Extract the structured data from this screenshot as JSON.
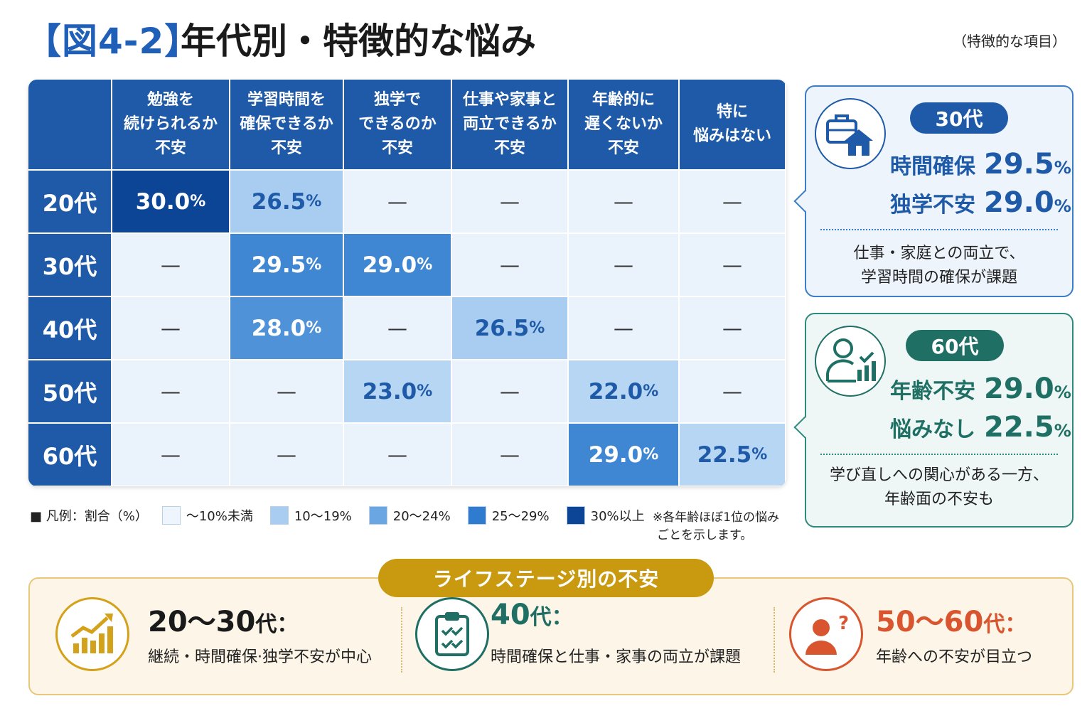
{
  "title": {
    "bracket": "【図4-2】",
    "main": "年代別・特徴的な悩み",
    "note": "（特徴的な項目）"
  },
  "chart_data": {
    "type": "heatmap",
    "columns": [
      "勉強を\n続けられるか\n不安",
      "学習時間を\n確保できるか\n不安",
      "独学で\nできるのか\n不安",
      "仕事や家事と\n両立できるか\n不安",
      "年齢的に\n遅くないか\n不安",
      "特に\n悩みはない"
    ],
    "rows": [
      "20代",
      "30代",
      "40代",
      "50代",
      "60代"
    ],
    "values": [
      [
        30.0,
        26.5,
        null,
        null,
        null,
        null
      ],
      [
        null,
        29.5,
        29.0,
        null,
        null,
        null
      ],
      [
        null,
        28.0,
        null,
        26.5,
        null,
        null
      ],
      [
        null,
        null,
        23.0,
        null,
        22.0,
        null
      ],
      [
        null,
        null,
        null,
        null,
        29.0,
        22.5
      ]
    ],
    "empty_mark": "—",
    "unit": "%",
    "color_scale": [
      {
        "label": "〜10%未満",
        "color": "#eaf3fc"
      },
      {
        "label": "10〜19%",
        "color": "#a9cdf0"
      },
      {
        "label": "20〜24%",
        "color": "#b7d6f3"
      },
      {
        "label": "25〜29%",
        "color": "#3f86d3"
      },
      {
        "label": "30%以上",
        "color": "#0d4596"
      }
    ]
  },
  "legend": {
    "title": "■ 凡例：割合（%）",
    "note_line1": "※各年齢ほぼ1位の悩み",
    "note_line2": "ごとを示します。"
  },
  "callout_30": {
    "badge": "30代",
    "stat1_label": "時間確保",
    "stat1_value": "29.5",
    "stat2_label": "独学不安",
    "stat2_value": "29.0",
    "pct": "%",
    "note_line1": "仕事・家庭との両立で、",
    "note_line2": "学習時間の確保が課題",
    "icon": "briefcase-house-icon",
    "color": "#1e5aa8"
  },
  "callout_60": {
    "badge": "60代",
    "stat1_label": "年齢不安",
    "stat1_value": "29.0",
    "stat2_label": "悩みなし",
    "stat2_value": "22.5",
    "pct": "%",
    "note_line1": "学び直しへの関心がある一方、",
    "note_line2": "年齢面の不安も",
    "icon": "person-chart-icon",
    "color": "#1f6f64"
  },
  "lifestage": {
    "banner": "ライフステージ別の不安",
    "items": [
      {
        "head": "20〜30",
        "suffix": "代：",
        "sub": "継続・時間確保·独学不安が中心",
        "color": "#1a1a1a",
        "icon": "growth-chart-icon"
      },
      {
        "head": "40",
        "suffix": "代：",
        "sub": "時間確保と仕事・家事の両立が課題",
        "color": "#1f6f64",
        "icon": "clipboard-check-icon"
      },
      {
        "head": "50〜60",
        "suffix": "代：",
        "sub": "年齢への不安が目立つ",
        "color": "#d9552f",
        "icon": "person-question-icon"
      }
    ]
  }
}
